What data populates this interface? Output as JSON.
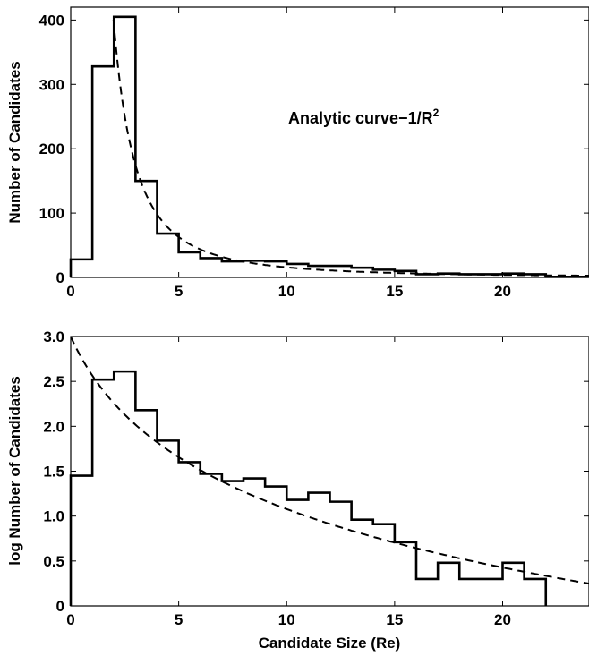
{
  "chart_data": [
    {
      "type": "histogram",
      "ylabel": "Number of Candidates",
      "xlabel": "",
      "xlim": [
        0,
        24
      ],
      "ylim": [
        0,
        420
      ],
      "xticks": [
        0,
        5,
        10,
        15,
        20
      ],
      "yticks": [
        0,
        100,
        200,
        300,
        400
      ],
      "annotation": {
        "text": "Analytic curve−1/R",
        "superscript": "2"
      },
      "bin_edges": [
        0,
        1,
        2,
        3,
        4,
        5,
        6,
        7,
        8,
        9,
        10,
        11,
        12,
        13,
        14,
        15,
        16,
        17,
        18,
        19,
        20,
        21,
        22,
        23,
        24
      ],
      "counts": [
        28,
        328,
        405,
        150,
        68,
        39,
        30,
        25,
        26,
        25,
        21,
        18,
        18,
        15,
        12,
        10,
        5,
        6,
        5,
        5,
        6,
        5,
        1,
        1
      ],
      "series": [
        {
          "style": "solid",
          "kind": "histogram"
        },
        {
          "style": "dashed",
          "kind": "analytic curve",
          "formula": "1/R^2"
        }
      ]
    },
    {
      "type": "histogram",
      "ylabel": "log Number of Candidates",
      "xlabel": "Candidate Size (Re)",
      "xlim": [
        0,
        24
      ],
      "ylim": [
        0,
        3.0
      ],
      "xticks": [
        0,
        5,
        10,
        15,
        20
      ],
      "yticks": [
        "0",
        "0.5",
        "1.0",
        "1.5",
        "2.0",
        "2.5",
        "3.0"
      ],
      "bin_edges": [
        0,
        1,
        2,
        3,
        4,
        5,
        6,
        7,
        8,
        9,
        10,
        11,
        12,
        13,
        14,
        15,
        16,
        17,
        18,
        19,
        20,
        21,
        22
      ],
      "values": [
        1.45,
        2.52,
        2.61,
        2.18,
        1.84,
        1.6,
        1.47,
        1.39,
        1.42,
        1.33,
        1.18,
        1.26,
        1.16,
        0.96,
        0.91,
        0.71,
        0.3,
        0.48,
        0.3,
        0.3,
        0.48,
        0.3
      ],
      "series": [
        {
          "style": "solid",
          "kind": "histogram"
        },
        {
          "style": "dashed",
          "kind": "analytic curve"
        }
      ]
    }
  ]
}
